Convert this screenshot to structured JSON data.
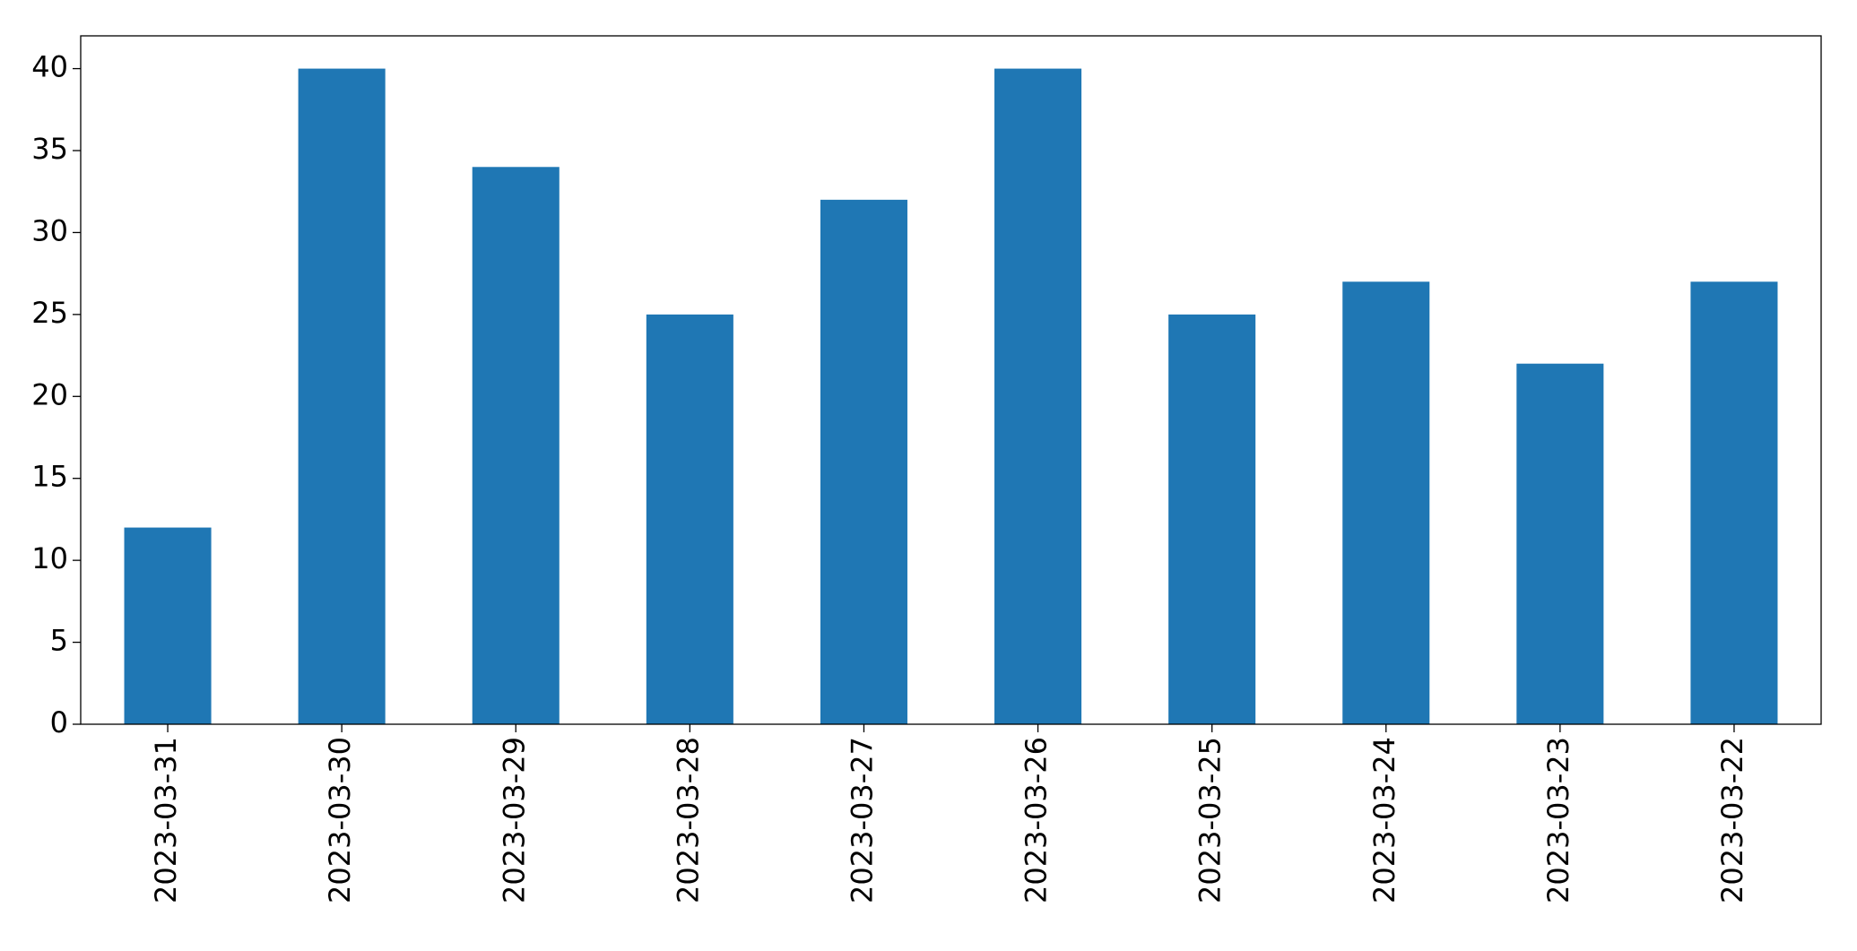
{
  "chart_data": {
    "type": "bar",
    "categories": [
      "2023-03-31",
      "2023-03-30",
      "2023-03-29",
      "2023-03-28",
      "2023-03-27",
      "2023-03-26",
      "2023-03-25",
      "2023-03-24",
      "2023-03-23",
      "2023-03-22"
    ],
    "values": [
      12,
      40,
      34,
      25,
      32,
      40,
      25,
      27,
      22,
      27
    ],
    "color": "#1f77b4",
    "ylim": [
      0,
      42
    ],
    "yticks": [
      0,
      5,
      10,
      15,
      20,
      25,
      30,
      35,
      40
    ],
    "grid": false
  }
}
